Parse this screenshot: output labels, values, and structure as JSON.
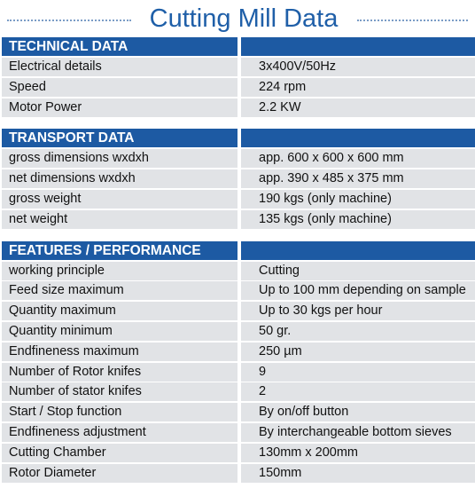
{
  "title": "Cutting Mill Data",
  "sections": [
    {
      "heading": "TECHNICAL DATA",
      "rows": [
        {
          "label": "Electrical details",
          "value": "3x400V/50Hz"
        },
        {
          "label": "Speed",
          "value": "224 rpm"
        },
        {
          "label": "Motor Power",
          "value": "2.2 KW"
        }
      ]
    },
    {
      "heading": "TRANSPORT DATA",
      "rows": [
        {
          "label": "gross dimensions wxdxh",
          "value": "app. 600 x 600 x 600 mm"
        },
        {
          "label": "net dimensions wxdxh",
          "value": "app. 390 x 485 x 375 mm"
        },
        {
          "label": "gross weight",
          "value": "190 kgs (only machine)"
        },
        {
          "label": "net weight",
          "value": "135 kgs (only machine)"
        }
      ]
    },
    {
      "heading": "FEATURES / PERFORMANCE",
      "rows": [
        {
          "label": "working principle",
          "value": "Cutting"
        },
        {
          "label": "Feed size maximum",
          "value": "Up to 100 mm depending on sample"
        },
        {
          "label": "Quantity maximum",
          "value": "Up to 30 kgs per hour"
        },
        {
          "label": "Quantity minimum",
          "value": "50 gr."
        },
        {
          "label": "Endfineness maximum",
          "value": "250 µm"
        },
        {
          "label": "Number of Rotor knifes",
          "value": "9"
        },
        {
          "label": "Number of stator knifes",
          "value": "2"
        },
        {
          "label": "Start / Stop function",
          "value": "By on/off button"
        },
        {
          "label": "Endfineness adjustment",
          "value": "By interchangeable bottom sieves"
        },
        {
          "label": "Cutting Chamber",
          "value": "130mm x 200mm"
        },
        {
          "label": "Rotor Diameter",
          "value": "150mm"
        }
      ]
    }
  ]
}
